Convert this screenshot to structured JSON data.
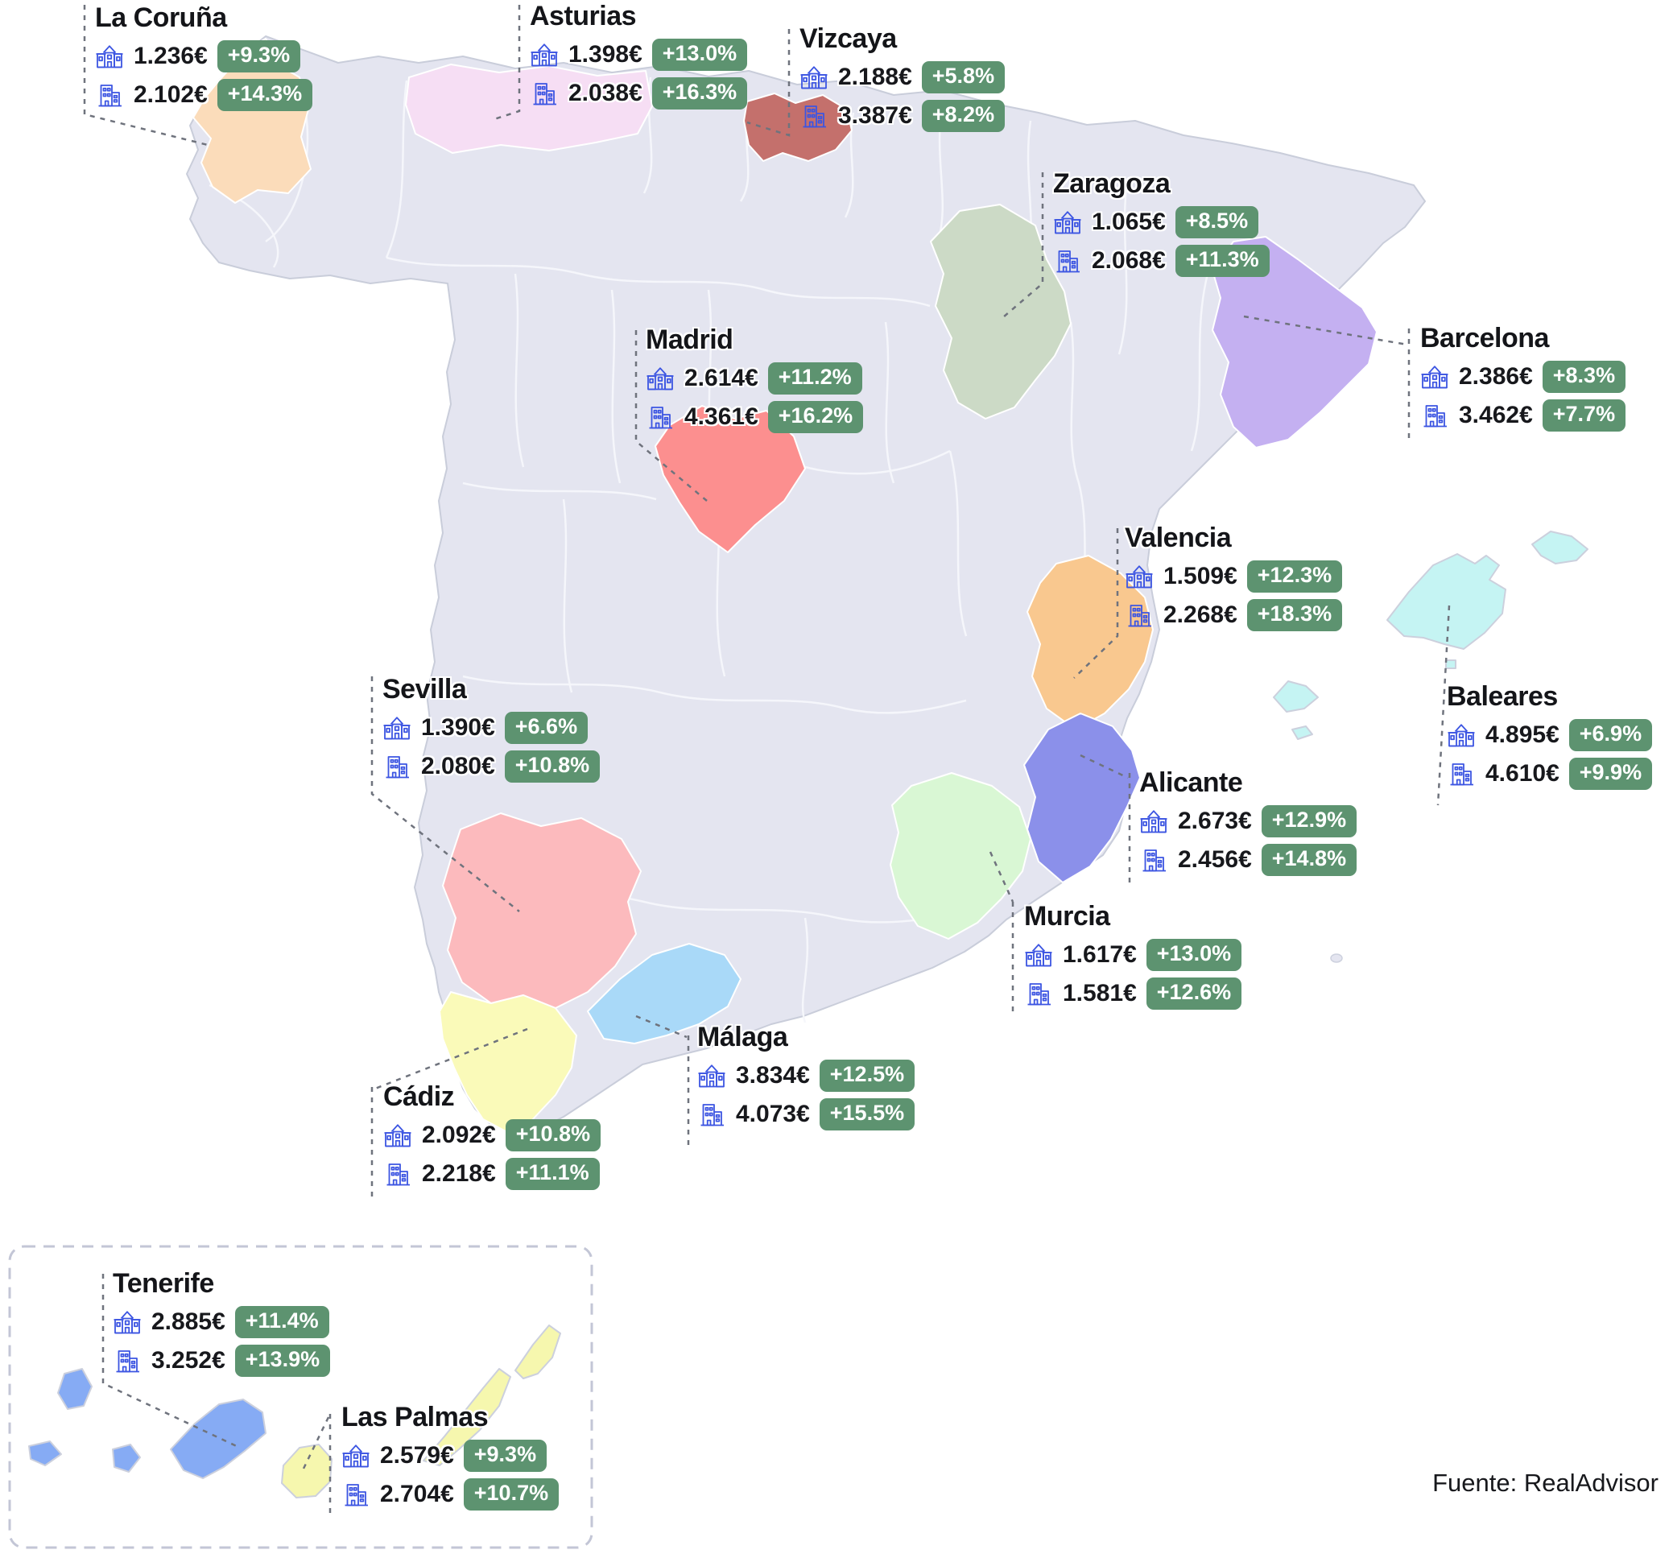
{
  "source": "Fuente: RealAdvisor",
  "badge_color": "#5d9370",
  "icon_color": "#3c55e2",
  "map": {
    "land_color": "#e4e5f0",
    "coast_color": "#c9cdda",
    "province_border_color": "#f6f7fb",
    "sea_color": "#ffffff"
  },
  "regions": [
    {
      "id": "la-coruna",
      "name": "La Coruña",
      "house_price": "1.236€",
      "house_change": "+9.3%",
      "apartment_price": "2.102€",
      "apartment_change": "+14.3%",
      "color": "#fbdcba"
    },
    {
      "id": "asturias",
      "name": "Asturias",
      "house_price": "1.398€",
      "house_change": "+13.0%",
      "apartment_price": "2.038€",
      "apartment_change": "+16.3%",
      "color": "#f6def4"
    },
    {
      "id": "vizcaya",
      "name": "Vizcaya",
      "house_price": "2.188€",
      "house_change": "+5.8%",
      "apartment_price": "3.387€",
      "apartment_change": "+8.2%",
      "color": "#c4706c"
    },
    {
      "id": "zaragoza",
      "name": "Zaragoza",
      "house_price": "1.065€",
      "house_change": "+8.5%",
      "apartment_price": "2.068€",
      "apartment_change": "+11.3%",
      "color": "#ccdac6"
    },
    {
      "id": "barcelona",
      "name": "Barcelona",
      "house_price": "2.386€",
      "house_change": "+8.3%",
      "apartment_price": "3.462€",
      "apartment_change": "+7.7%",
      "color": "#c4b0f1"
    },
    {
      "id": "madrid",
      "name": "Madrid",
      "house_price": "2.614€",
      "house_change": "+11.2%",
      "apartment_price": "4.361€",
      "apartment_change": "+16.2%",
      "color": "#fc8f8f"
    },
    {
      "id": "valencia",
      "name": "Valencia",
      "house_price": "1.509€",
      "house_change": "+12.3%",
      "apartment_price": "2.268€",
      "apartment_change": "+18.3%",
      "color": "#f9c88f"
    },
    {
      "id": "sevilla",
      "name": "Sevilla",
      "house_price": "1.390€",
      "house_change": "+6.6%",
      "apartment_price": "2.080€",
      "apartment_change": "+10.8%",
      "color": "#fcbabd"
    },
    {
      "id": "baleares",
      "name": "Baleares",
      "house_price": "4.895€",
      "house_change": "+6.9%",
      "apartment_price": "4.610€",
      "apartment_change": "+9.9%",
      "color": "#c5f4f3"
    },
    {
      "id": "alicante",
      "name": "Alicante",
      "house_price": "2.673€",
      "house_change": "+12.9%",
      "apartment_price": "2.456€",
      "apartment_change": "+14.8%",
      "color": "#8b90ea"
    },
    {
      "id": "murcia",
      "name": "Murcia",
      "house_price": "1.617€",
      "house_change": "+13.0%",
      "apartment_price": "1.581€",
      "apartment_change": "+12.6%",
      "color": "#d9f7d4"
    },
    {
      "id": "malaga",
      "name": "Málaga",
      "house_price": "3.834€",
      "house_change": "+12.5%",
      "apartment_price": "4.073€",
      "apartment_change": "+15.5%",
      "color": "#a9d9f8"
    },
    {
      "id": "cadiz",
      "name": "Cádiz",
      "house_price": "2.092€",
      "house_change": "+10.8%",
      "apartment_price": "2.218€",
      "apartment_change": "+11.1%",
      "color": "#fafab9"
    },
    {
      "id": "tenerife",
      "name": "Tenerife",
      "house_price": "2.885€",
      "house_change": "+11.4%",
      "apartment_price": "3.252€",
      "apartment_change": "+13.9%",
      "color": "#86abf4"
    },
    {
      "id": "las-palmas",
      "name": "Las Palmas",
      "house_price": "2.579€",
      "house_change": "+9.3%",
      "apartment_price": "2.704€",
      "apartment_change": "+10.7%",
      "color": "#f6f7ae"
    }
  ]
}
